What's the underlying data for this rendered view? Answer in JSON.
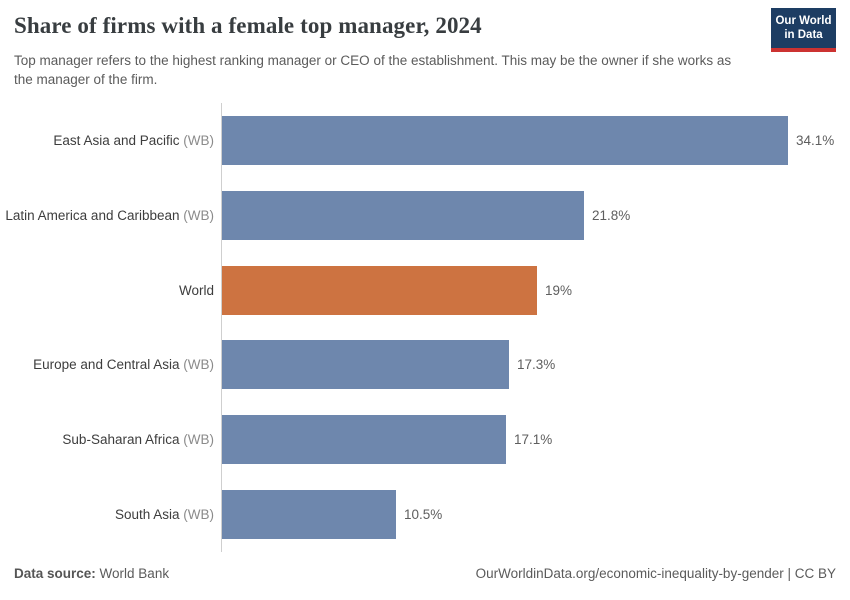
{
  "header": {
    "title": "Share of firms with a female top manager, 2024",
    "subtitle": "Top manager refers to the highest ranking manager or CEO of the establishment. This may be the owner if she works as the manager of the firm.",
    "logo": {
      "line1": "Our World",
      "line2": "in Data",
      "bg_color": "#1d3d63",
      "stripe_color": "#cc3231"
    }
  },
  "chart_data": {
    "type": "bar",
    "orientation": "horizontal",
    "title": "Share of firms with a female top manager, 2024",
    "categories": [
      "East Asia and Pacific (WB)",
      "Latin America and Caribbean (WB)",
      "World",
      "Europe and Central Asia (WB)",
      "Sub-Saharan Africa (WB)",
      "South Asia (WB)"
    ],
    "values": [
      34.1,
      21.8,
      19,
      17.3,
      17.1,
      10.5
    ],
    "value_labels": [
      "34.1%",
      "21.8%",
      "19%",
      "17.3%",
      "17.1%",
      "10.5%"
    ],
    "xlabel": "",
    "ylabel": "",
    "xlim": [
      0,
      37
    ],
    "grid": false,
    "legend": "none",
    "bar_color": "#6e87ad",
    "highlight_color": "#cd7341",
    "highlight_index": 2,
    "rows": [
      {
        "name": "East Asia and Pacific",
        "suffix": "(WB)",
        "value": 34.1,
        "value_label": "34.1%",
        "color": "#6e87ad"
      },
      {
        "name": "Latin America and Caribbean",
        "suffix": "(WB)",
        "value": 21.8,
        "value_label": "21.8%",
        "color": "#6e87ad"
      },
      {
        "name": "World",
        "suffix": "",
        "value": 19,
        "value_label": "19%",
        "color": "#cd7341"
      },
      {
        "name": "Europe and Central Asia",
        "suffix": "(WB)",
        "value": 17.3,
        "value_label": "17.3%",
        "color": "#6e87ad"
      },
      {
        "name": "Sub-Saharan Africa",
        "suffix": "(WB)",
        "value": 17.1,
        "value_label": "17.1%",
        "color": "#6e87ad"
      },
      {
        "name": "South Asia",
        "suffix": "(WB)",
        "value": 10.5,
        "value_label": "10.5%",
        "color": "#6e87ad"
      }
    ]
  },
  "footer": {
    "source_label": "Data source:",
    "source_value": "World Bank",
    "citation": "OurWorldinData.org/economic-inequality-by-gender | CC BY"
  }
}
